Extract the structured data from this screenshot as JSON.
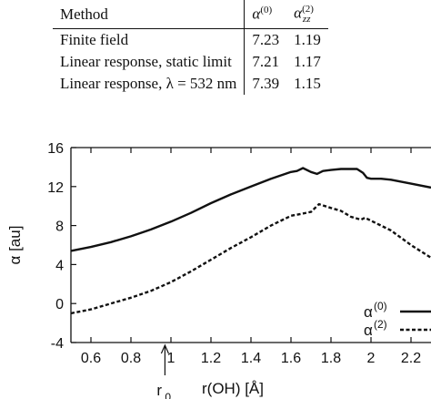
{
  "table": {
    "headers": [
      "Method",
      "α^(0)",
      "α_zz^(2)"
    ],
    "header_parts": {
      "method": "Method",
      "alpha0_base": "α",
      "alpha0_sup": "(0)",
      "alpha2_base": "α",
      "alpha2_sup": "(2)",
      "alpha2_sub": "zz"
    },
    "rows": [
      {
        "method": "Finite field",
        "alpha0": "7.23",
        "alpha2": "1.19"
      },
      {
        "method": "Linear response, static limit",
        "alpha0": "7.21",
        "alpha2": "1.17"
      },
      {
        "method": "Linear response, λ = 532 nm",
        "alpha0": "7.39",
        "alpha2": "1.15"
      }
    ]
  },
  "chart_data": {
    "type": "line",
    "xlabel": "r(OH) [Å]",
    "ylabel": "α [au]",
    "xlim": [
      0.5,
      2.3
    ],
    "ylim": [
      -4,
      16
    ],
    "xticks": [
      "0.6",
      "0.8",
      "1",
      "1.2",
      "1.4",
      "1.6",
      "1.8",
      "2",
      "2.2"
    ],
    "yticks": [
      "16",
      "12",
      "8",
      "4",
      "0",
      "-4"
    ],
    "annotation": {
      "label": "r",
      "sub": "0",
      "x": 0.97
    },
    "legend_position": "bottom-right",
    "series": [
      {
        "name": "α(0)",
        "name_base": "α",
        "name_sup": "(0)",
        "style": "solid",
        "x": [
          0.5,
          0.6,
          0.7,
          0.8,
          0.9,
          1.0,
          1.1,
          1.2,
          1.3,
          1.4,
          1.5,
          1.6,
          1.63,
          1.66,
          1.7,
          1.73,
          1.76,
          1.8,
          1.85,
          1.9,
          1.93,
          1.96,
          1.98,
          2.0,
          2.05,
          2.1,
          2.2,
          2.3
        ],
        "y": [
          5.4,
          5.8,
          6.3,
          6.9,
          7.6,
          8.4,
          9.3,
          10.3,
          11.2,
          12.0,
          12.8,
          13.5,
          13.6,
          13.9,
          13.5,
          13.3,
          13.6,
          13.7,
          13.8,
          13.8,
          13.8,
          13.4,
          12.9,
          12.8,
          12.8,
          12.7,
          12.3,
          11.9
        ]
      },
      {
        "name": "α(2)",
        "name_base": "α",
        "name_sup": "(2)",
        "style": "dashed",
        "x": [
          0.5,
          0.6,
          0.7,
          0.8,
          0.9,
          1.0,
          1.1,
          1.2,
          1.3,
          1.4,
          1.5,
          1.6,
          1.65,
          1.7,
          1.74,
          1.8,
          1.85,
          1.9,
          1.95,
          1.97,
          2.0,
          2.05,
          2.1,
          2.2,
          2.3
        ],
        "y": [
          -1.0,
          -0.6,
          0.0,
          0.6,
          1.3,
          2.2,
          3.3,
          4.5,
          5.7,
          6.8,
          8.0,
          9.0,
          9.2,
          9.4,
          10.2,
          9.8,
          9.5,
          8.9,
          8.6,
          8.8,
          8.5,
          8.0,
          7.5,
          6.0,
          4.7
        ]
      }
    ]
  }
}
